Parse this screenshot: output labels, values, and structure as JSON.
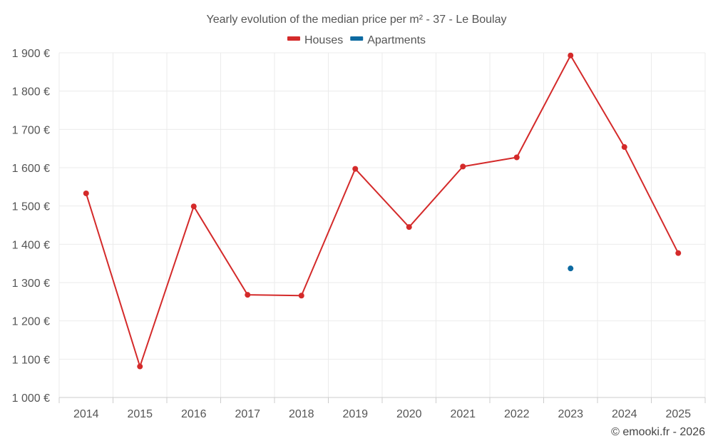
{
  "chart_data": {
    "type": "line",
    "title": "Yearly evolution of the median price per m² - 37 - Le Boulay",
    "categories": [
      "2014",
      "2015",
      "2016",
      "2017",
      "2018",
      "2019",
      "2020",
      "2021",
      "2022",
      "2023",
      "2024",
      "2025"
    ],
    "series": [
      {
        "name": "Houses",
        "color": "#d42a2a",
        "values": [
          1533,
          1081,
          1499,
          1268,
          1266,
          1597,
          1445,
          1603,
          1627,
          1893,
          1654,
          1377
        ]
      },
      {
        "name": "Apartments",
        "color": "#0d6aa1",
        "values": [
          null,
          null,
          null,
          null,
          null,
          null,
          null,
          null,
          null,
          1337,
          null,
          null
        ]
      }
    ],
    "ylim": [
      1000,
      1900
    ],
    "yticks": [
      1000,
      1100,
      1200,
      1300,
      1400,
      1500,
      1600,
      1700,
      1800,
      1900
    ],
    "ytick_labels": [
      "1 000 €",
      "1 100 €",
      "1 200 €",
      "1 300 €",
      "1 400 €",
      "1 500 €",
      "1 600 €",
      "1 700 €",
      "1 800 €",
      "1 900 €"
    ],
    "xlabel": "",
    "ylabel": "",
    "grid": true,
    "legend_position": "top-center"
  },
  "credit": "© emooki.fr - 2026"
}
